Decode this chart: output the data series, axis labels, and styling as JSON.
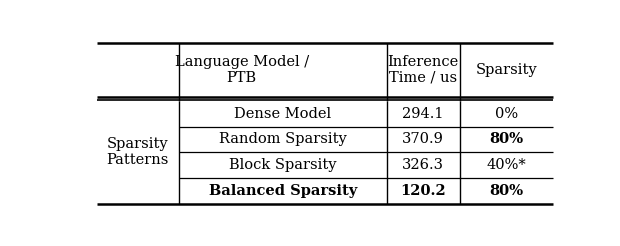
{
  "header_col1": "Language Model /\nPTB",
  "header_col2": "Inference\nTime / us",
  "header_col3": "Sparsity",
  "row_label": "Sparsity\nPatterns",
  "rows": [
    {
      "col1": "Dense Model",
      "col2": "294.1",
      "col3": "0%",
      "bold": false,
      "bold_col2": false,
      "bold_col3": false
    },
    {
      "col1": "Random Sparsity",
      "col2": "370.9",
      "col3": "80%",
      "bold": false,
      "bold_col2": false,
      "bold_col3": true
    },
    {
      "col1": "Block Sparsity",
      "col2": "326.3",
      "col3": "40%*",
      "bold": false,
      "bold_col2": false,
      "bold_col3": false
    },
    {
      "col1": "Balanced Sparsity",
      "col2": "120.2",
      "col3": "80%",
      "bold": true,
      "bold_col2": true,
      "bold_col3": true
    }
  ],
  "bg_color": "#ffffff",
  "line_color": "#000000",
  "font_size": 10.5
}
